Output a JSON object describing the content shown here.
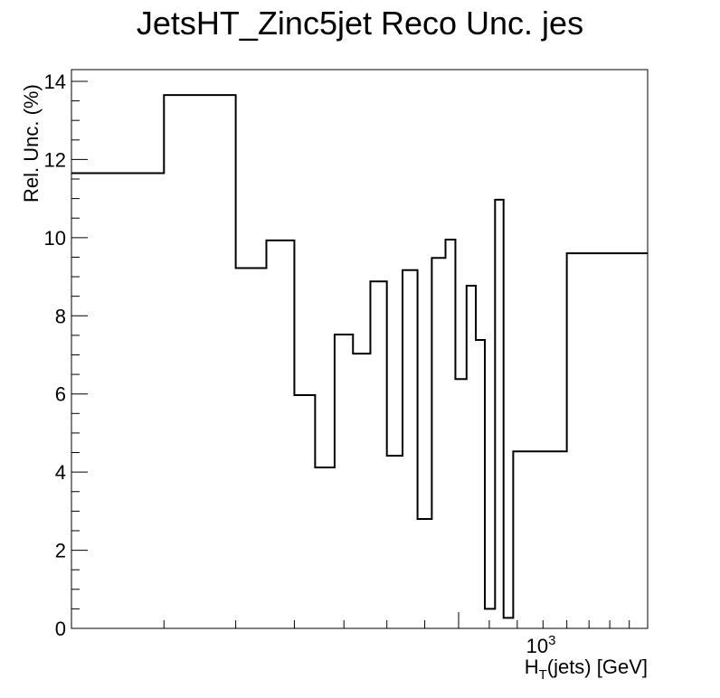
{
  "chart_data": {
    "type": "histogram-step",
    "title": "JetsHT_Zinc5jet Reco Unc. jes",
    "xlabel": "H_T(jets) [GeV]",
    "xlabel_parts": {
      "main": "H",
      "sub": "T",
      "rest": "(jets) [GeV]"
    },
    "ylabel": "Rel. Unc. (%)",
    "x_scale": "log",
    "xlim": [
      300,
      1800
    ],
    "ylim": [
      0,
      14.3
    ],
    "x_tick_label": {
      "base": "10",
      "exp": "3",
      "value": 1000
    },
    "y_ticks": [
      0,
      2,
      4,
      6,
      8,
      10,
      12,
      14
    ],
    "grid": false,
    "legend": "none",
    "line_color": "#000000",
    "bins": [
      {
        "low": 300,
        "high": 400,
        "value": 11.65
      },
      {
        "low": 400,
        "high": 500,
        "value": 13.65
      },
      {
        "low": 500,
        "high": 550,
        "value": 9.22
      },
      {
        "low": 550,
        "high": 600,
        "value": 9.93
      },
      {
        "low": 600,
        "high": 640,
        "value": 5.97
      },
      {
        "low": 640,
        "high": 680,
        "value": 4.12
      },
      {
        "low": 680,
        "high": 720,
        "value": 7.52
      },
      {
        "low": 720,
        "high": 760,
        "value": 7.03
      },
      {
        "low": 760,
        "high": 800,
        "value": 8.88
      },
      {
        "low": 800,
        "high": 840,
        "value": 4.42
      },
      {
        "low": 840,
        "high": 880,
        "value": 9.17
      },
      {
        "low": 880,
        "high": 920,
        "value": 2.8
      },
      {
        "low": 920,
        "high": 960,
        "value": 9.48
      },
      {
        "low": 960,
        "high": 990,
        "value": 9.95
      },
      {
        "low": 990,
        "high": 1025,
        "value": 6.38
      },
      {
        "low": 1025,
        "high": 1055,
        "value": 8.77
      },
      {
        "low": 1055,
        "high": 1085,
        "value": 7.38
      },
      {
        "low": 1085,
        "high": 1120,
        "value": 0.5
      },
      {
        "low": 1120,
        "high": 1150,
        "value": 10.97
      },
      {
        "low": 1150,
        "high": 1185,
        "value": 0.27
      },
      {
        "low": 1185,
        "high": 1400,
        "value": 4.53
      },
      {
        "low": 1400,
        "high": 1800,
        "value": 9.6
      }
    ]
  }
}
